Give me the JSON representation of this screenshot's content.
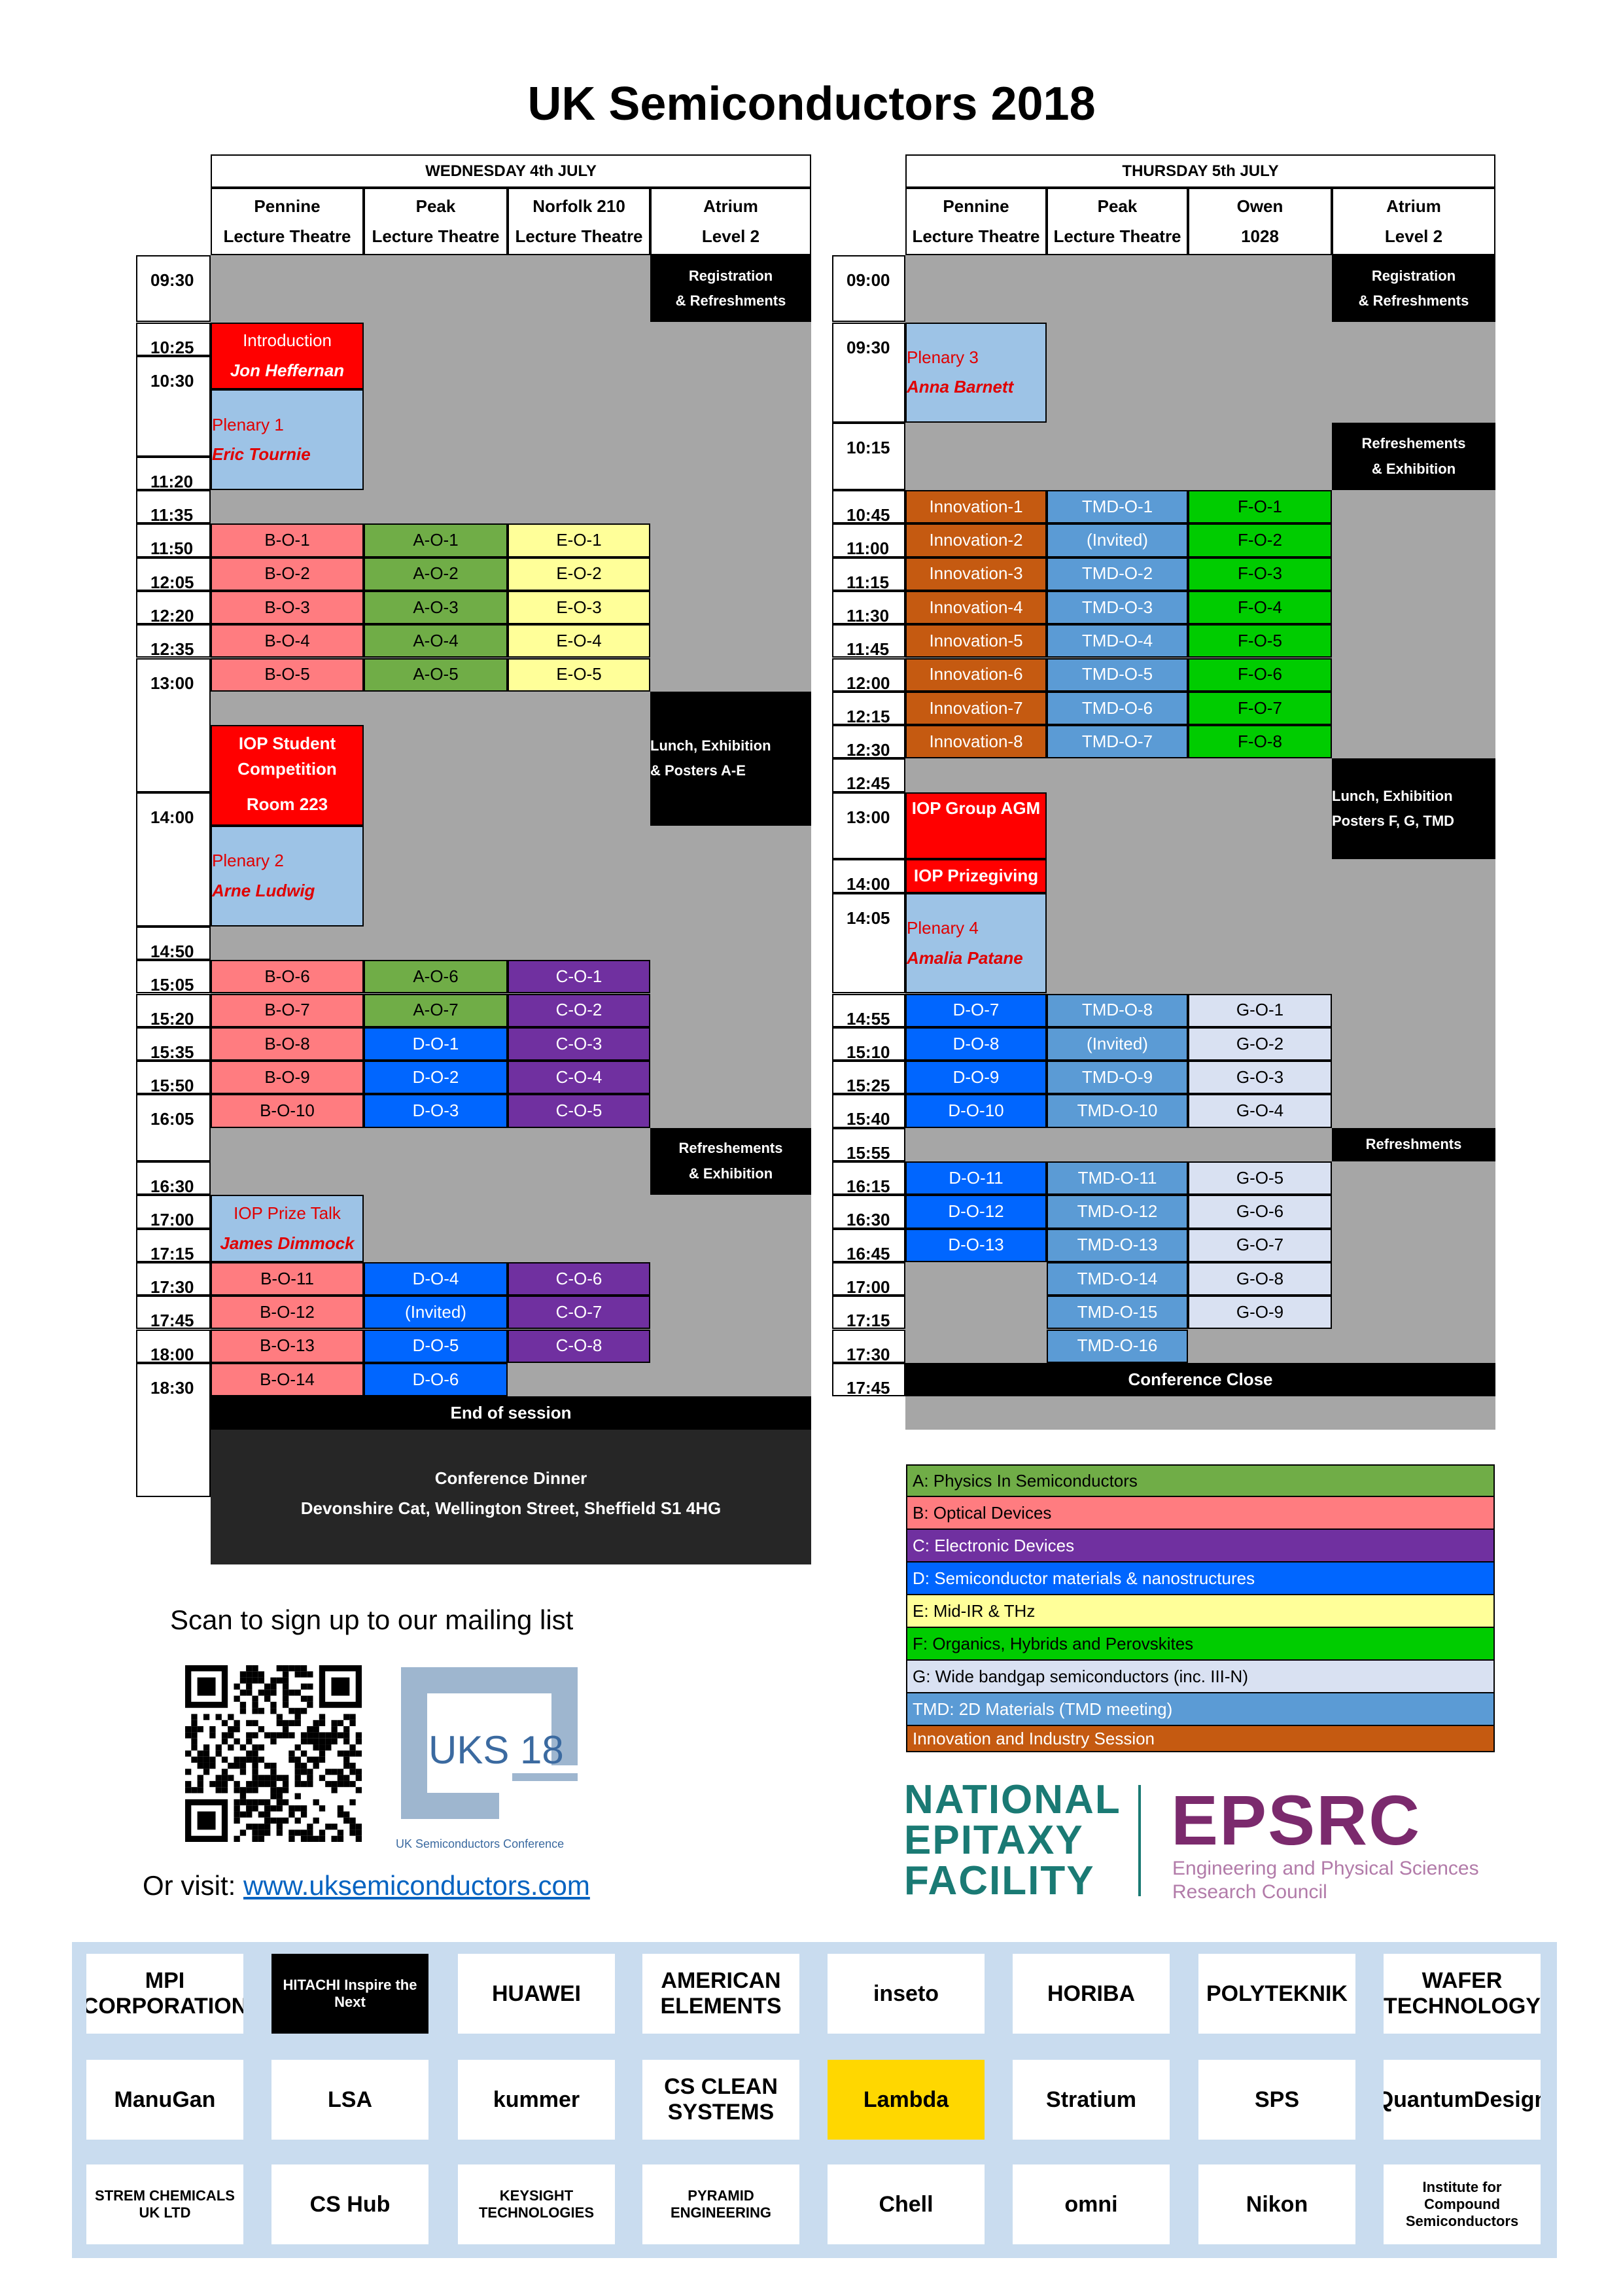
{
  "title": "UK Semiconductors 2018",
  "colors": {
    "A": "#70ad47",
    "B": "#ff7c80",
    "C": "#7030a0",
    "D": "#0066ff",
    "E": "#ffff99",
    "F": "#00cc00",
    "G": "#d9e1f2",
    "TMD": "#5b9bd5",
    "Innovation": "#c55a11",
    "IOP": "#ff0000",
    "Plenary": "#9dc3e6",
    "grey": "#a6a6a6",
    "black": "#000000"
  },
  "wednesday": {
    "day": "WEDNESDAY 4th JULY",
    "rooms": [
      {
        "l1": "Pennine",
        "l2": "Lecture Theatre"
      },
      {
        "l1": "Peak",
        "l2": "Lecture Theatre"
      },
      {
        "l1": "Norfolk 210",
        "l2": "Lecture Theatre"
      },
      {
        "l1": "Atrium",
        "l2": "Level 2"
      }
    ],
    "times": [
      "09:30",
      "10:25",
      "10:30",
      "11:20",
      "11:35",
      "11:50",
      "12:05",
      "12:20",
      "12:35",
      "13:00",
      "14:00",
      "14:50",
      "15:05",
      "15:20",
      "15:35",
      "15:50",
      "16:05",
      "16:30",
      "17:00",
      "17:15",
      "17:30",
      "17:45",
      "18:00",
      "18:30"
    ],
    "registration": [
      "Registration",
      "& Refreshments"
    ],
    "introduction": "Introduction",
    "introduction_speaker": "Jon Heffernan",
    "plenary1": "Plenary 1",
    "plenary1_speaker": "Eric Tournie",
    "lunch": [
      "Lunch, Exhibition",
      "& Posters A-E"
    ],
    "iop_student": [
      "IOP Student",
      "Competition",
      "Room 223"
    ],
    "plenary2": "Plenary 2",
    "plenary2_speaker": "Arne Ludwig",
    "refreshments": [
      "Refreshements",
      "& Exhibition"
    ],
    "prize_talk": "IOP Prize Talk",
    "prize_talk_speaker": "James Dimmock",
    "end": "End of session",
    "dinner": [
      "Conference Dinner",
      "Devonshire Cat, Wellington Street, Sheffield S1 4HG"
    ],
    "morning_rows": [
      [
        "B-O-1",
        "A-O-1",
        "E-O-1"
      ],
      [
        "B-O-2",
        "A-O-2",
        "E-O-2"
      ],
      [
        "B-O-3",
        "A-O-3",
        "E-O-3"
      ],
      [
        "B-O-4",
        "A-O-4",
        "E-O-4"
      ],
      [
        "B-O-5",
        "A-O-5",
        "E-O-5"
      ]
    ],
    "afternoon_rows": [
      [
        "B-O-6",
        "A-O-6",
        "C-O-1"
      ],
      [
        "B-O-7",
        "A-O-7",
        "C-O-2"
      ],
      [
        "B-O-8",
        "D-O-1",
        "C-O-3"
      ],
      [
        "B-O-9",
        "D-O-2",
        "C-O-4"
      ],
      [
        "B-O-10",
        "D-O-3",
        "C-O-5"
      ]
    ],
    "late_rows": [
      [
        "B-O-11",
        "D-O-4",
        "C-O-6"
      ],
      [
        "B-O-12",
        "(Invited)",
        "C-O-7"
      ],
      [
        "B-O-13",
        "D-O-5",
        "C-O-8"
      ],
      [
        "B-O-14",
        "D-O-6",
        ""
      ]
    ]
  },
  "thursday": {
    "day": "THURSDAY 5th JULY",
    "rooms": [
      {
        "l1": "Pennine",
        "l2": "Lecture Theatre"
      },
      {
        "l1": "Peak",
        "l2": "Lecture Theatre"
      },
      {
        "l1": "Owen",
        "l2": "1028"
      },
      {
        "l1": "Atrium",
        "l2": "Level 2"
      }
    ],
    "times": [
      "09:00",
      "09:30",
      "10:15",
      "10:45",
      "11:00",
      "11:15",
      "11:30",
      "11:45",
      "12:00",
      "12:15",
      "12:30",
      "12:45",
      "13:00",
      "14:00",
      "14:05",
      "14:55",
      "15:10",
      "15:25",
      "15:40",
      "15:55",
      "16:15",
      "16:30",
      "16:45",
      "17:00",
      "17:15",
      "17:30",
      "17:45"
    ],
    "registration": [
      "Registration",
      "& Refreshments"
    ],
    "plenary3": "Plenary 3",
    "plenary3_speaker": "Anna Barnett",
    "refreshments1": [
      "Refreshements",
      "& Exhibition"
    ],
    "innovation": [
      "Innovation-1",
      "Innovation-2",
      "Innovation-3",
      "Innovation-4",
      "Innovation-5",
      "Innovation-6",
      "Innovation-7",
      "Innovation-8"
    ],
    "tmd_morning": [
      "TMD-O-1",
      "(Invited)",
      "TMD-O-2",
      "TMD-O-3",
      "TMD-O-4",
      "TMD-O-5",
      "TMD-O-6",
      "TMD-O-7"
    ],
    "f_morning": [
      "F-O-1",
      "F-O-2",
      "F-O-3",
      "F-O-4",
      "F-O-5",
      "F-O-6",
      "F-O-7",
      "F-O-8"
    ],
    "lunch": [
      "Lunch, Exhibition",
      "Posters F, G, TMD"
    ],
    "agm": "IOP Group AGM",
    "prizegiving": "IOP Prizegiving",
    "plenary4": "Plenary 4",
    "plenary4_speaker": "Amalia Patane",
    "d_afternoon": [
      "D-O-7",
      "D-O-8",
      "D-O-9",
      "D-O-10"
    ],
    "tmd_afternoon": [
      "TMD-O-8",
      "(Invited)",
      "TMD-O-9",
      "TMD-O-10"
    ],
    "g_afternoon": [
      "G-O-1",
      "G-O-2",
      "G-O-3",
      "G-O-4"
    ],
    "refreshments2": "Refreshments",
    "d_late": [
      "D-O-11",
      "D-O-12",
      "D-O-13"
    ],
    "tmd_late": [
      "TMD-O-11",
      "TMD-O-12",
      "TMD-O-13",
      "TMD-O-14",
      "TMD-O-15",
      "TMD-O-16"
    ],
    "g_late": [
      "G-O-5",
      "G-O-6",
      "G-O-7",
      "G-O-8",
      "G-O-9"
    ],
    "close": "Conference Close"
  },
  "legend": [
    {
      "key": "A",
      "text": "A: Physics In Semiconductors",
      "fg": "#000000"
    },
    {
      "key": "B",
      "text": "B: Optical Devices",
      "fg": "#000000"
    },
    {
      "key": "C",
      "text": "C: Electronic Devices",
      "fg": "#ffffff"
    },
    {
      "key": "D",
      "text": "D: Semiconductor materials & nanostructures",
      "fg": "#ffffff"
    },
    {
      "key": "E",
      "text": "E: Mid-IR & THz",
      "fg": "#000000"
    },
    {
      "key": "F",
      "text": "F: Organics, Hybrids and Perovskites",
      "fg": "#000000"
    },
    {
      "key": "G",
      "text": "G: Wide bandgap semiconductors (inc. III-N)",
      "fg": "#000000"
    },
    {
      "key": "TMD",
      "text": "TMD: 2D Materials (TMD meeting)",
      "fg": "#ffffff"
    },
    {
      "key": "Innovation",
      "text": "Innovation and Industry Session",
      "fg": "#ffffff"
    }
  ],
  "mailing": "Scan to sign up to our mailing list",
  "visit_label": "Or visit: ",
  "visit_link": "www.uksemiconductors.com",
  "uks_logo": {
    "text": "UKS 18",
    "sub": "UK Semiconductors Conference"
  },
  "nef_logo": [
    "NATIONAL",
    "EPITAXY",
    "FACILITY"
  ],
  "epsrc_logo": {
    "name": "EPSRC",
    "sub1": "Engineering and Physical Sciences",
    "sub2": "Research Council"
  },
  "sponsors": [
    [
      "MPI CORPORATION",
      "HITACHI Inspire the Next",
      "HUAWEI",
      "AMERICAN ELEMENTS",
      "inseto",
      "HORIBA",
      "POLYTEKNIK",
      "WAFER TECHNOLOGY"
    ],
    [
      "ManuGan",
      "LSA",
      "kummer",
      "CS CLEAN SYSTEMS",
      "Lambda",
      "Stratium",
      "SPS",
      "QuantumDesign"
    ],
    [
      "STREM CHEMICALS UK LTD",
      "CS Hub",
      "KEYSIGHT TECHNOLOGIES",
      "PYRAMID ENGINEERING",
      "Chell",
      "omni",
      "Nikon",
      "Institute for Compound Semiconductors"
    ]
  ]
}
